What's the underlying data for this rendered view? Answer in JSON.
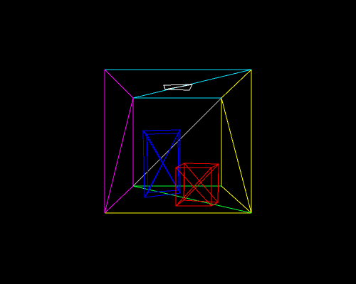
{
  "scene": {
    "background_color": "#000000",
    "room": {
      "description_colors": {
        "ceiling": "#00e5ff",
        "left_wall": "#ff00ff",
        "right_wall": "#ffff00",
        "floor": "#00ff33",
        "diagonal": "#aaaaaa"
      }
    },
    "light": {
      "color": "#ffffff"
    },
    "tall_box": {
      "color": "#0000ff"
    },
    "short_box": {
      "color": "#ff0000"
    }
  }
}
